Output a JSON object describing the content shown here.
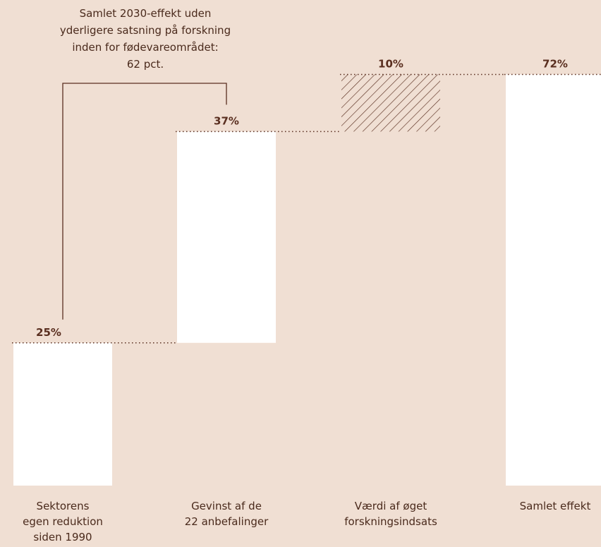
{
  "colors": {
    "background": "#f0dfd3",
    "bar": "#ffffff",
    "text": "#4a2a1c",
    "accent": "#5a2f20"
  },
  "chart_data": {
    "type": "bar",
    "subtype": "waterfall",
    "title": "",
    "xlabel": "",
    "ylabel": "",
    "ylim": [
      0,
      80
    ],
    "grid": false,
    "legend": "none",
    "categories": [
      [
        "Sektorens",
        "egen reduktion",
        "siden 1990"
      ],
      [
        "Gevinst af de",
        "22 anbefalinger"
      ],
      [
        "Værdi af øget",
        "forskningsindsats"
      ],
      [
        "Samlet effekt"
      ]
    ],
    "values": [
      25,
      37,
      10,
      72
    ],
    "labels": [
      "25%",
      "37%",
      "10%",
      "72%"
    ],
    "bar_styles": [
      "solid",
      "solid",
      "hatched",
      "solid"
    ],
    "annotation": {
      "lines": [
        "Samlet 2030-effekt uden",
        "yderligere satsning på forskning",
        "inden for fødevareområdet:",
        "62 pct."
      ],
      "value": 62
    }
  }
}
